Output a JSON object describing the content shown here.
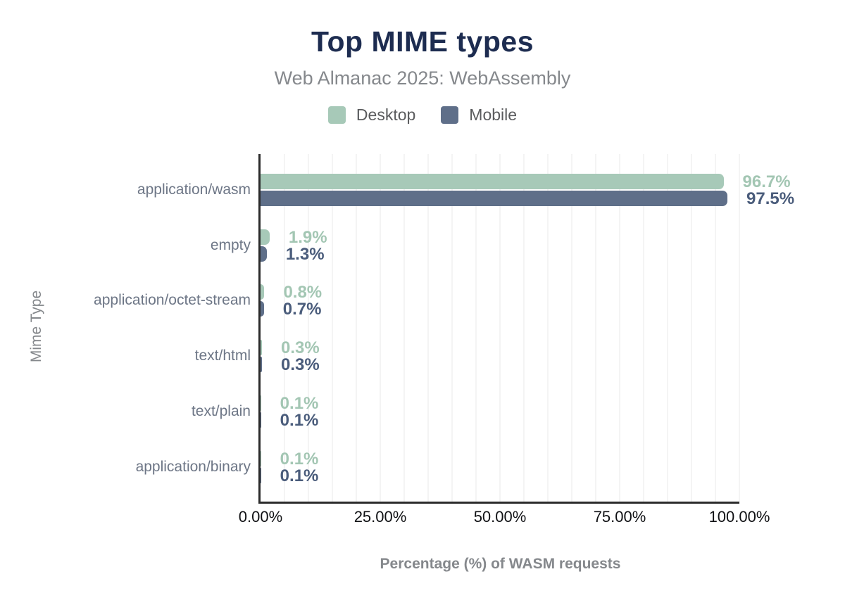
{
  "chart_data": {
    "type": "bar",
    "orientation": "horizontal",
    "title": "Top MIME types",
    "subtitle": "Web Almanac 2025: WebAssembly",
    "xlabel": "Percentage (%) of WASM requests",
    "ylabel": "Mime Type",
    "categories": [
      "application/wasm",
      "empty",
      "application/octet-stream",
      "text/html",
      "text/plain",
      "application/binary"
    ],
    "series": [
      {
        "name": "Desktop",
        "color": "#a7c9b8",
        "label_color": "#a3c6b3",
        "values": [
          96.7,
          1.9,
          0.8,
          0.3,
          0.1,
          0.1
        ],
        "labels": [
          "96.7%",
          "1.9%",
          "0.8%",
          "0.3%",
          "0.1%",
          "0.1%"
        ]
      },
      {
        "name": "Mobile",
        "color": "#5f6f89",
        "label_color": "#4a5c7b",
        "values": [
          97.5,
          1.3,
          0.7,
          0.3,
          0.1,
          0.1
        ],
        "labels": [
          "97.5%",
          "1.3%",
          "0.7%",
          "0.3%",
          "0.1%",
          "0.1%"
        ]
      }
    ],
    "xlim": [
      0,
      100
    ],
    "x_ticks": [
      {
        "value": 0,
        "label": "0.00%"
      },
      {
        "value": 25,
        "label": "25.00%"
      },
      {
        "value": 50,
        "label": "50.00%"
      },
      {
        "value": 75,
        "label": "75.00%"
      },
      {
        "value": 100,
        "label": "100.00%"
      }
    ],
    "minor_grid_step": 5,
    "grid": true,
    "legend_position": "top"
  }
}
